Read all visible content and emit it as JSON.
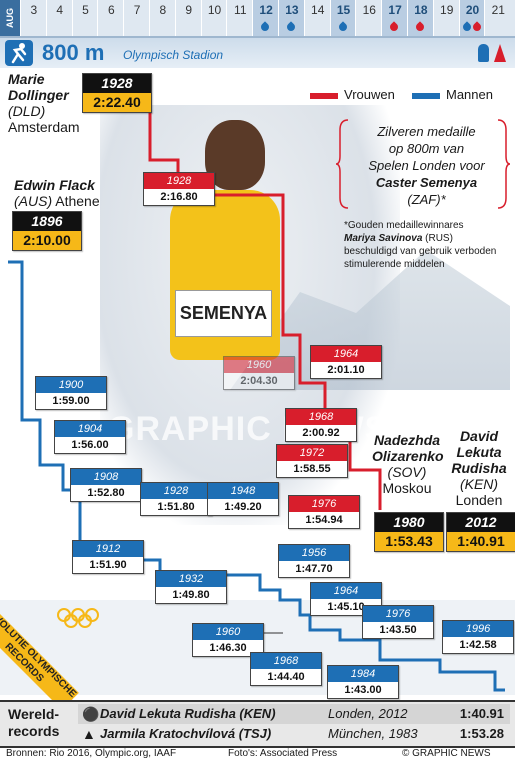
{
  "calendar": {
    "month": "AUG",
    "days": [
      {
        "d": "3"
      },
      {
        "d": "4"
      },
      {
        "d": "5"
      },
      {
        "d": "6"
      },
      {
        "d": "7"
      },
      {
        "d": "8"
      },
      {
        "d": "9"
      },
      {
        "d": "10"
      },
      {
        "d": "11"
      },
      {
        "d": "12",
        "events": [
          "blue"
        ]
      },
      {
        "d": "13",
        "events": [
          "blue"
        ]
      },
      {
        "d": "14"
      },
      {
        "d": "15",
        "events": [
          "blue"
        ]
      },
      {
        "d": "16"
      },
      {
        "d": "17",
        "events": [
          "red"
        ]
      },
      {
        "d": "18",
        "events": [
          "red"
        ]
      },
      {
        "d": "19"
      },
      {
        "d": "20",
        "events": [
          "blue",
          "red"
        ]
      },
      {
        "d": "21"
      }
    ]
  },
  "header": {
    "event": "800 m",
    "venue": "Olympisch Stadion"
  },
  "legend": {
    "women": "Vrouwen",
    "men": "Mannen",
    "women_color": "#d81e2c",
    "men_color": "#1e6fb5"
  },
  "athletes": {
    "dollinger": {
      "first": "Marie",
      "last": "Dollinger",
      "country": "(DLD)",
      "city": "Amsterdam"
    },
    "flack": {
      "first": "Edwin Flack",
      "country": "(AUS)",
      "city": "Athene"
    },
    "olizarenko": {
      "first": "Nadezhda",
      "last": "Olizarenko",
      "country": "(SOV)",
      "city": "Moskou"
    },
    "rudisha": {
      "first": "David",
      "mid": "Lekuta",
      "last": "Rudisha",
      "country": "(KEN)",
      "city": "Londen"
    }
  },
  "note": {
    "line1": "Zilveren medaille",
    "line2": "op 800m van",
    "line3": "Spelen Londen voor",
    "line4": "Caster Semenya",
    "line5": "(ZAF)*"
  },
  "footnote": {
    "p1": "*Gouden medaillewinnares",
    "name": "Mariya Savinova",
    "p2": "(RUS)",
    "p3": "beschuldigd van gebruik verboden stimulerende middelen"
  },
  "photo": {
    "bib": "SEMENYA",
    "watermark": "GRAPHIC NEWS"
  },
  "women_records": [
    {
      "year": "1928",
      "time": "2:16.80"
    },
    {
      "year": "1960",
      "time": "2:04.30"
    },
    {
      "year": "1964",
      "time": "2:01.10"
    },
    {
      "year": "1968",
      "time": "2:00.92"
    },
    {
      "year": "1972",
      "time": "1:58.55"
    },
    {
      "year": "1976",
      "time": "1:54.94"
    }
  ],
  "men_records": [
    {
      "year": "1900",
      "time": "1:59.00"
    },
    {
      "year": "1904",
      "time": "1:56.00"
    },
    {
      "year": "1908",
      "time": "1:52.80"
    },
    {
      "year": "1912",
      "time": "1:51.90"
    },
    {
      "year": "1928",
      "time": "1:51.80"
    },
    {
      "year": "1932",
      "time": "1:49.80"
    },
    {
      "year": "1948",
      "time": "1:49.20"
    },
    {
      "year": "1956",
      "time": "1:47.70"
    },
    {
      "year": "1960",
      "time": "1:46.30"
    },
    {
      "year": "1964",
      "time": "1:45.10"
    },
    {
      "year": "1968",
      "time": "1:44.40"
    },
    {
      "year": "1976",
      "time": "1:43.50"
    },
    {
      "year": "1984",
      "time": "1:43.00"
    },
    {
      "year": "1996",
      "time": "1:42.58"
    }
  ],
  "highlights": {
    "dollinger": {
      "year": "1928",
      "time": "2:22.40"
    },
    "flack": {
      "year": "1896",
      "time": "2:10.00"
    },
    "olizarenko": {
      "year": "1980",
      "time": "1:53.43"
    },
    "rudisha": {
      "year": "2012",
      "time": "1:40.91"
    }
  },
  "evolution_label": "EVOLUTIE OLYMPISCHE RECORDS",
  "world_records": {
    "label1": "Wereld-",
    "label2": "records",
    "rows": [
      {
        "name": "David Lekuta Rudisha (KEN)",
        "place": "Londen, 2012",
        "time": "1:40.91"
      },
      {
        "name": "Jarmila Kratochvílová (TSJ)",
        "place": "München, 1983",
        "time": "1:53.28"
      }
    ]
  },
  "sources": {
    "left": "Bronnen: Rio 2016, Olympic.org, IAAF",
    "mid": "Foto's: Associated Press",
    "right": "© GRAPHIC NEWS"
  }
}
